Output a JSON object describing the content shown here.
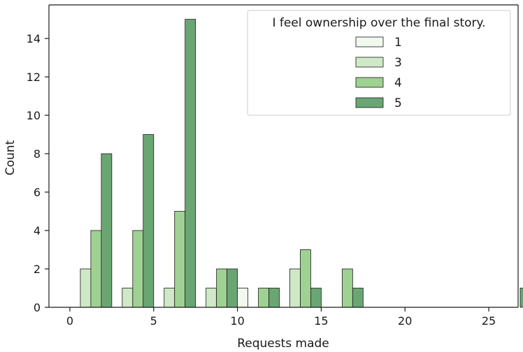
{
  "chart_data": {
    "type": "bar",
    "xlabel": "Requests made",
    "ylabel": "Count",
    "xlim": [
      -1.25,
      26.75
    ],
    "ylim": [
      0,
      15.75
    ],
    "xticks": [
      0,
      5,
      10,
      15,
      20,
      25
    ],
    "yticks": [
      0,
      2,
      4,
      6,
      8,
      10,
      12,
      14
    ],
    "bin_width": 2.5,
    "bin_starts": [
      0,
      2.5,
      5,
      7.5,
      10,
      12.5,
      15,
      25
    ],
    "legend": {
      "title": "I feel ownership over the final story.",
      "placement": "upper-right"
    },
    "series": [
      {
        "name": "1",
        "color": "#f1f8ee",
        "values": [
          0,
          0,
          0,
          0,
          1,
          0,
          0,
          0
        ]
      },
      {
        "name": "3",
        "color": "#cfe8c6",
        "values": [
          2,
          1,
          1,
          1,
          0,
          2,
          0,
          0
        ]
      },
      {
        "name": "4",
        "color": "#9ed192",
        "values": [
          4,
          4,
          5,
          2,
          1,
          3,
          2,
          0
        ]
      },
      {
        "name": "5",
        "color": "#6aa673",
        "values": [
          8,
          9,
          15,
          2,
          1,
          1,
          1,
          1
        ]
      }
    ]
  }
}
